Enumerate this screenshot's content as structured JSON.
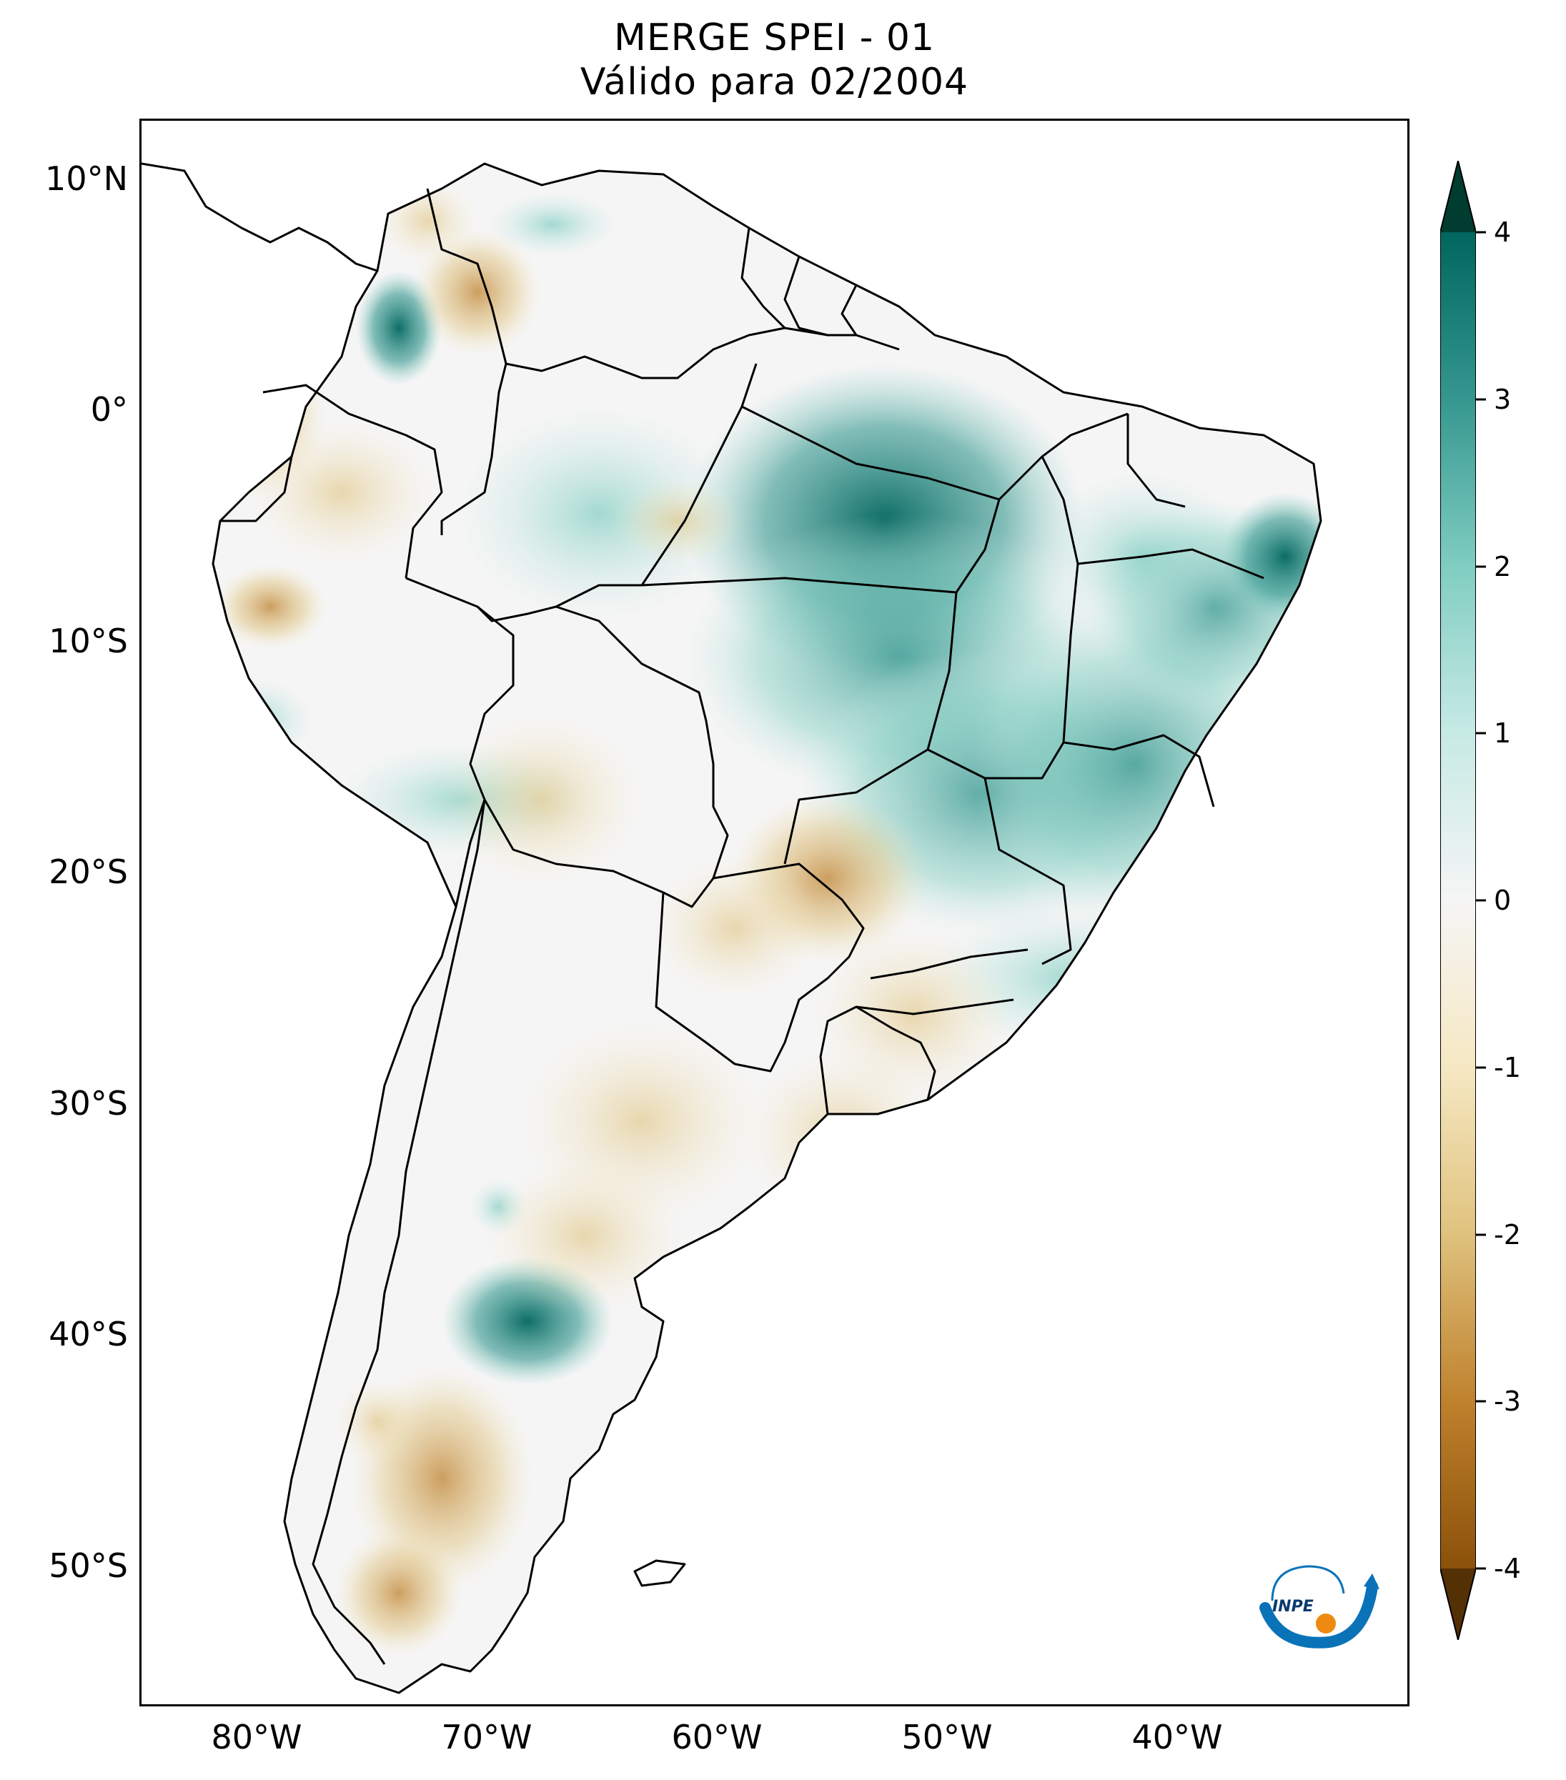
{
  "title": {
    "line1": "MERGE   SPEI - 01",
    "line2": "Válido para 02/2004"
  },
  "axes": {
    "lat_labels": [
      "10°N",
      "0°",
      "10°S",
      "20°S",
      "30°S",
      "40°S",
      "50°S"
    ],
    "lon_labels": [
      "80°W",
      "70°W",
      "60°W",
      "50°W",
      "40°W"
    ],
    "lat_values": [
      10,
      0,
      -10,
      -20,
      -30,
      -40,
      -50
    ],
    "lon_values": [
      -80,
      -70,
      -60,
      -50,
      -40
    ],
    "lon_range": [
      -85,
      -30
    ],
    "lat_range": [
      -56,
      12.5
    ]
  },
  "colorbar": {
    "ticks": [
      "4",
      "3",
      "2",
      "1",
      "0",
      "-1",
      "-2",
      "-3",
      "-4"
    ],
    "tick_values": [
      4,
      3,
      2,
      1,
      0,
      -1,
      -2,
      -3,
      -4
    ],
    "range": [
      -4,
      4
    ],
    "extend": "both",
    "colors": {
      "max": "#003c30",
      "wet_strong": "#01665e",
      "wet": "#35978f",
      "wet_light": "#80cdc1",
      "wet_pale": "#c7eae5",
      "neutral": "#f5f5f5",
      "dry_pale": "#f6e8c3",
      "dry_light": "#dfc27d",
      "dry": "#bf812d",
      "dry_strong": "#8c510a",
      "min": "#543005"
    }
  },
  "logo": {
    "text": "INPE"
  }
}
